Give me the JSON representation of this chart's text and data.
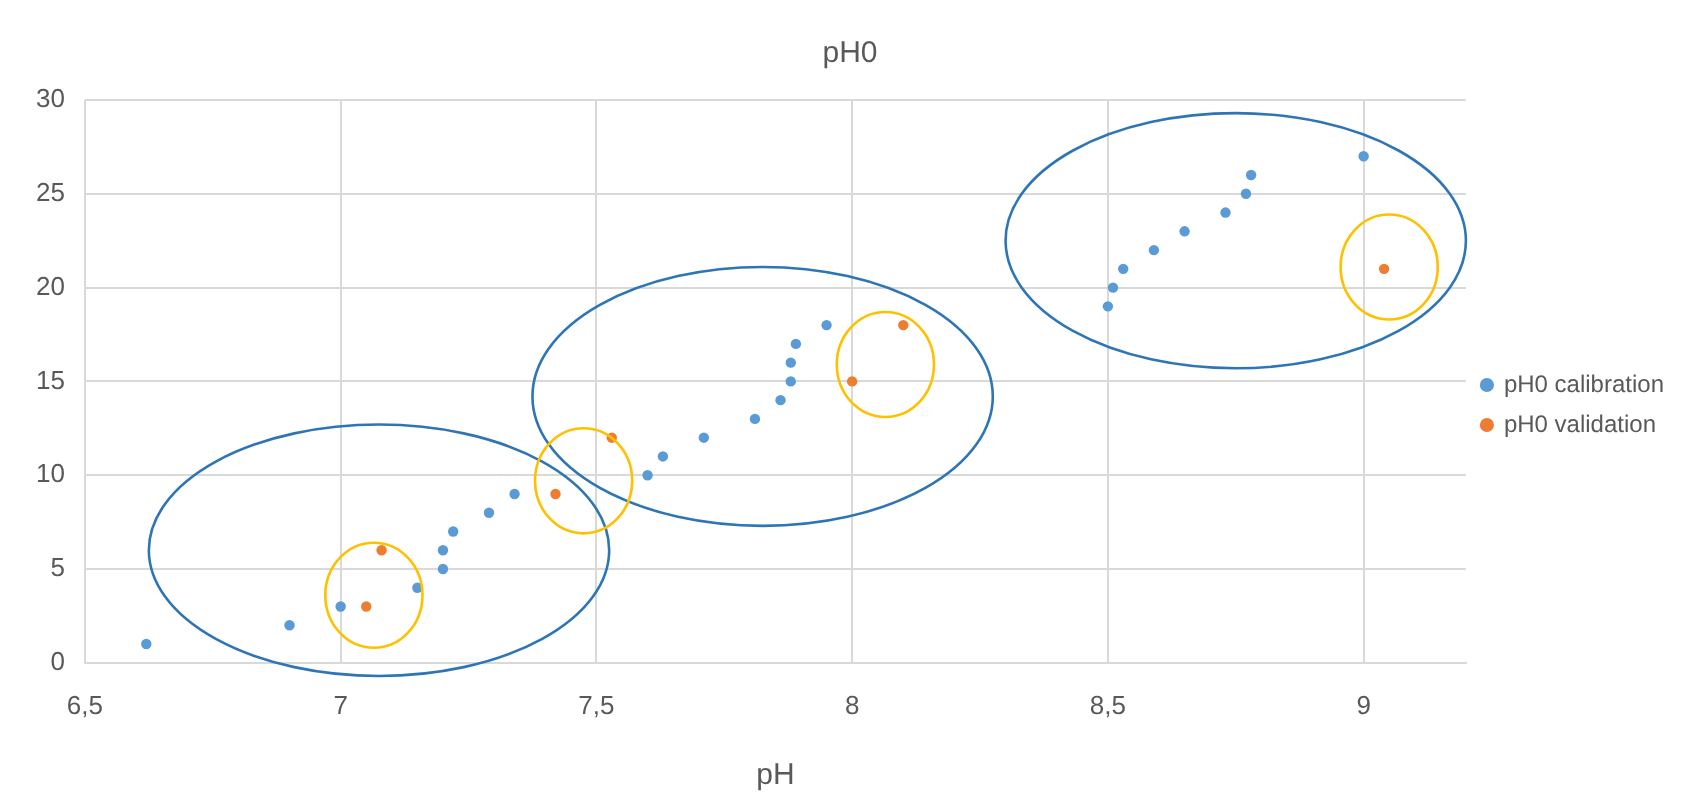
{
  "chart_data": {
    "type": "scatter",
    "title": "pH0",
    "xlabel": "pH",
    "xlim": [
      6.5,
      9.2
    ],
    "xticks": [
      {
        "value": 6.5,
        "label": "6,5"
      },
      7,
      {
        "value": 7.5,
        "label": "7,5"
      },
      8,
      {
        "value": 8.5,
        "label": "8,5"
      },
      9
    ],
    "ylim": [
      0,
      30
    ],
    "yticks": [
      0,
      5,
      10,
      15,
      20,
      25,
      30
    ],
    "grid": true,
    "legend": "right",
    "marker": "circle",
    "series": [
      {
        "name": "pH0 calibration",
        "color": "#5b9bd5",
        "x": [
          6.62,
          6.9,
          7.0,
          7.15,
          7.2,
          7.2,
          7.22,
          7.29,
          7.34,
          7.6,
          7.63,
          7.71,
          7.81,
          7.86,
          7.88,
          7.88,
          7.89,
          7.95,
          8.5,
          8.51,
          8.53,
          8.59,
          8.65,
          8.73,
          8.77,
          8.78,
          9.0
        ],
        "values": [
          1,
          2,
          3,
          4,
          5,
          6,
          7,
          8,
          9,
          10,
          11,
          12,
          13,
          14,
          15,
          16,
          17,
          18,
          19,
          20,
          21,
          22,
          23,
          24,
          25,
          26,
          27
        ]
      },
      {
        "name": "pH0 validation",
        "color": "#ed7d31",
        "x": [
          7.05,
          7.08,
          7.42,
          7.53,
          8.0,
          8.1,
          9.04
        ],
        "values": [
          3,
          6,
          9,
          12,
          15,
          18,
          21
        ]
      }
    ]
  }
}
